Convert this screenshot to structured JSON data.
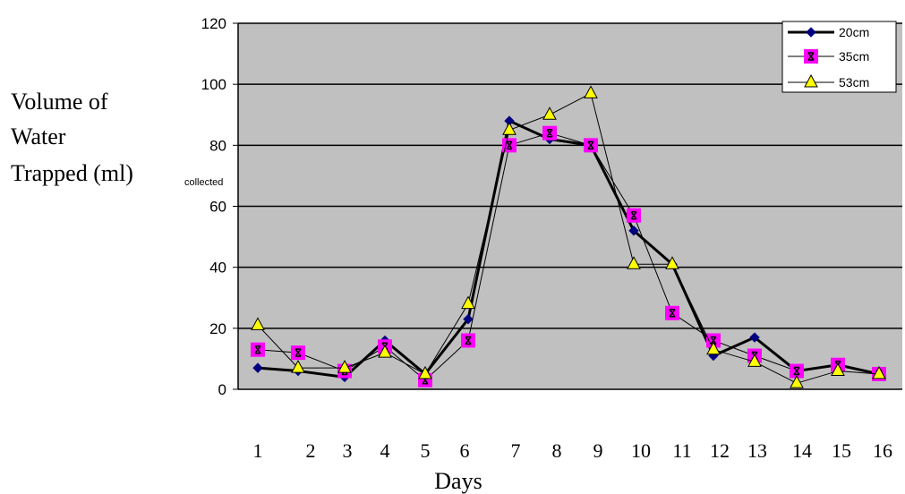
{
  "chart_data": {
    "type": "line",
    "ylabel_lines": [
      "Volume of",
      "Water",
      "Trapped (ml)"
    ],
    "ylabel_overlap": "collected",
    "xlabel": "Days",
    "x": [
      1,
      2,
      3,
      4,
      5,
      6,
      7,
      8,
      9,
      10,
      11,
      12,
      13,
      14,
      15,
      16
    ],
    "x_tick_labels": [
      "1",
      "2",
      "3",
      "4",
      "5",
      "6",
      "7",
      "8",
      "9",
      "10",
      "11",
      "12",
      "13",
      "14",
      "15",
      "16"
    ],
    "y_ticks": [
      "0",
      "20",
      "40",
      "60",
      "80",
      "100",
      "120"
    ],
    "ylim": [
      0,
      120
    ],
    "grid": true,
    "legend_position": "top-right",
    "plot_background": "#c0c0c0",
    "series": [
      {
        "name": "20cm",
        "marker": "diamond",
        "color": "#000080",
        "values": [
          7,
          6,
          4,
          16,
          5,
          23,
          88,
          82,
          80,
          52,
          41,
          11,
          17,
          6,
          8,
          5
        ]
      },
      {
        "name": "35cm",
        "marker": "square",
        "color": "#ff00ff",
        "values": [
          13,
          12,
          6,
          14,
          3,
          16,
          80,
          84,
          80,
          57,
          25,
          16,
          11,
          6,
          8,
          5
        ]
      },
      {
        "name": "53cm",
        "marker": "triangle",
        "color": "#ffff00",
        "values": [
          21,
          7,
          7,
          12,
          5,
          28,
          85,
          90,
          97,
          41,
          41,
          13,
          9,
          2,
          6,
          5
        ]
      }
    ]
  }
}
